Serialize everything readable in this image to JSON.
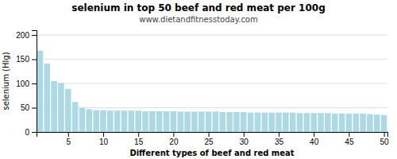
{
  "chart_data": {
    "type": "bar",
    "title": "selenium in top 50 beef and red meat per 100g",
    "subtitle": "www.dietandfitnesstoday.com",
    "x_label": "Different types of beef and red meat",
    "y_label": "selenium (Hlg)",
    "x": [
      1,
      2,
      3,
      4,
      5,
      6,
      7,
      8,
      9,
      10,
      11,
      12,
      13,
      14,
      15,
      16,
      17,
      18,
      19,
      20,
      21,
      22,
      23,
      24,
      25,
      26,
      27,
      28,
      29,
      30,
      31,
      32,
      33,
      34,
      35,
      36,
      37,
      38,
      39,
      40,
      41,
      42,
      43,
      44,
      45,
      46,
      47,
      48,
      49,
      50
    ],
    "values": [
      168,
      141,
      105,
      101,
      89,
      62,
      50,
      47,
      45,
      45,
      44,
      44,
      44,
      44,
      44,
      43,
      43,
      43,
      43,
      43,
      42,
      42,
      42,
      42,
      42,
      42,
      41,
      41,
      41,
      41,
      40,
      40,
      40,
      40,
      40,
      40,
      40,
      39,
      39,
      39,
      39,
      39,
      38,
      38,
      38,
      38,
      38,
      37,
      36,
      35
    ],
    "color": "#add8e6",
    "xlim": [
      0.5,
      50.5
    ],
    "xticks": [
      5,
      10,
      15,
      20,
      25,
      30,
      35,
      40,
      45,
      50
    ],
    "ylim": [
      0,
      210
    ],
    "yticks": [
      0,
      50,
      100,
      150,
      200
    ],
    "grid": true
  }
}
